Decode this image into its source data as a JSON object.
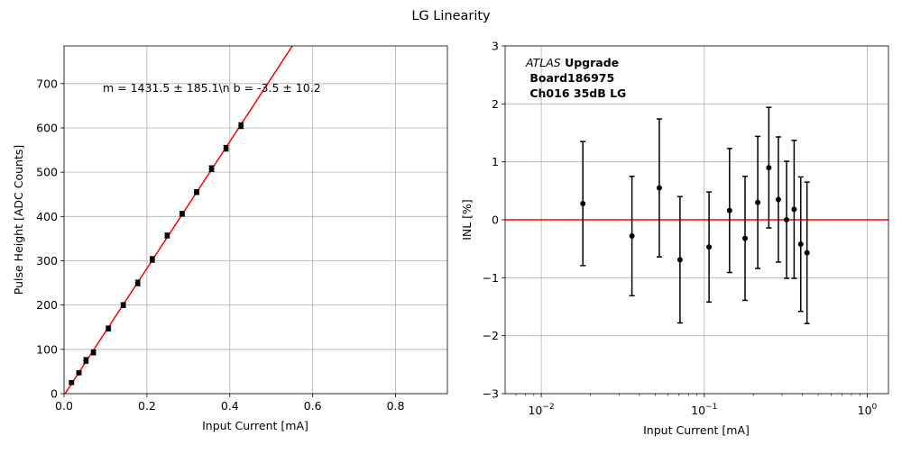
{
  "figure": {
    "title": "LG Linearity"
  },
  "chart_data": [
    {
      "type": "scatter",
      "title": "",
      "xlabel": "Input Current [mA]",
      "ylabel": "Pulse Height [ADC Counts]",
      "xlim": [
        0,
        0.925
      ],
      "ylim": [
        0,
        785
      ],
      "xscale": "linear",
      "grid": true,
      "xticks": [
        0.0,
        0.2,
        0.4,
        0.6,
        0.8
      ],
      "xtick_labels": [
        "0.0",
        "0.2",
        "0.4",
        "0.6",
        "0.8"
      ],
      "yticks": [
        0,
        100,
        200,
        300,
        400,
        500,
        600,
        700
      ],
      "ytick_labels": [
        "0",
        "100",
        "200",
        "300",
        "400",
        "500",
        "600",
        "700"
      ],
      "annotation": "m = 1431.5 ± 185.1\\n b = -3.5 ± 10.2",
      "fit_line": {
        "slope": 1431.5,
        "intercept": -3.5,
        "color": "#ff0000"
      },
      "points": {
        "x": [
          0.018,
          0.036,
          0.053,
          0.071,
          0.107,
          0.143,
          0.178,
          0.213,
          0.249,
          0.285,
          0.32,
          0.356,
          0.391,
          0.427
        ],
        "y": [
          25,
          47,
          75,
          93,
          147,
          200,
          250,
          303,
          357,
          406,
          455,
          508,
          554,
          605
        ],
        "yerr": [
          4,
          4,
          6,
          5,
          5,
          5,
          6,
          6,
          5,
          5,
          5,
          6,
          6,
          6
        ],
        "color": "#000000"
      }
    },
    {
      "type": "scatter",
      "title": "",
      "xlabel": "Input Current [mA]",
      "ylabel": "INL [%]",
      "xlim": [
        0.006,
        1.35
      ],
      "ylim": [
        -3,
        3
      ],
      "xscale": "log",
      "grid": true,
      "xticks": [
        0.01,
        0.1,
        1
      ],
      "xtick_labels": [
        {
          "base": "10",
          "exp": "−2"
        },
        {
          "base": "10",
          "exp": "−1"
        },
        {
          "base": "10",
          "exp": "0"
        }
      ],
      "yticks": [
        -3,
        -2,
        -1,
        0,
        1,
        2,
        3
      ],
      "ytick_labels": [
        "−3",
        "−2",
        "−1",
        "0",
        "1",
        "2",
        "3"
      ],
      "label_lines": [
        {
          "italic": "ATLAS",
          "bold": " Upgrade"
        },
        {
          "italic": "",
          "bold": " Board186975"
        },
        {
          "italic": "",
          "bold": " Ch016 35dB LG"
        }
      ],
      "reference_line": {
        "y": 0,
        "color": "#ff0000"
      },
      "points": {
        "x": [
          0.018,
          0.036,
          0.053,
          0.071,
          0.107,
          0.143,
          0.178,
          0.213,
          0.249,
          0.285,
          0.32,
          0.356,
          0.391,
          0.427
        ],
        "y": [
          0.28,
          -0.28,
          0.55,
          -0.69,
          -0.47,
          0.16,
          -0.32,
          0.3,
          0.9,
          0.35,
          0.0,
          0.18,
          -0.42,
          -0.57
        ],
        "yerr": [
          1.07,
          1.03,
          1.19,
          1.09,
          0.95,
          1.07,
          1.07,
          1.14,
          1.04,
          1.08,
          1.01,
          1.19,
          1.16,
          1.22
        ],
        "color": "#000000"
      }
    }
  ]
}
